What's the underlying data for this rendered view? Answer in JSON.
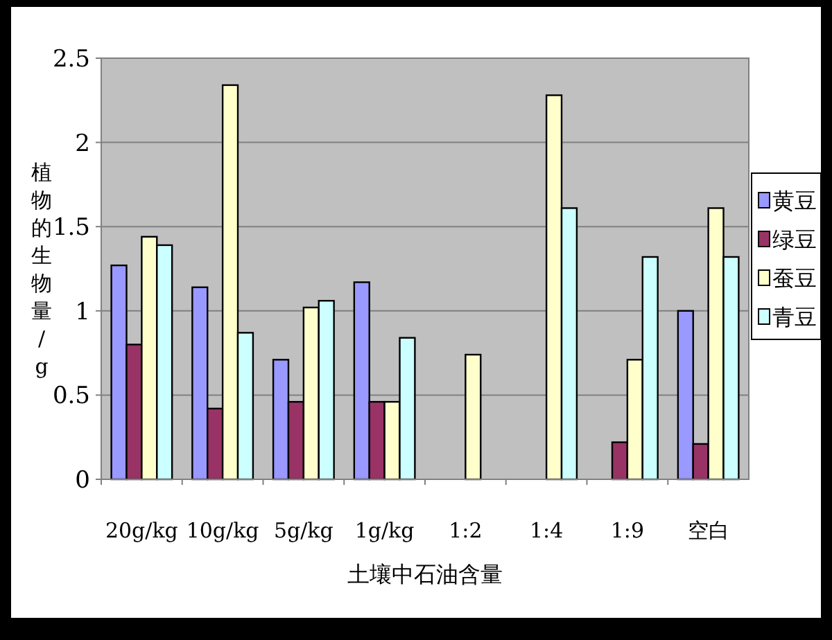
{
  "chart_data": {
    "type": "bar",
    "xlabel": "土壤中石油含量",
    "ylabel": "植物的生物量/g",
    "categories": [
      "20g/kg",
      "10g/kg",
      "5g/kg",
      "1g/kg",
      "1:2",
      "1:4",
      "1:9",
      "空白"
    ],
    "series": [
      {
        "name": "黄豆",
        "color": "#9999ff",
        "values": [
          1.27,
          1.14,
          0.71,
          1.17,
          null,
          null,
          null,
          1.0
        ]
      },
      {
        "name": "绿豆",
        "color": "#993366",
        "values": [
          0.8,
          0.42,
          0.46,
          0.46,
          null,
          null,
          0.22,
          0.21
        ]
      },
      {
        "name": "蚕豆",
        "color": "#ffffcc",
        "values": [
          1.44,
          2.34,
          1.02,
          0.46,
          0.74,
          2.28,
          0.71,
          1.61
        ]
      },
      {
        "name": "青豆",
        "color": "#ccffff",
        "values": [
          1.39,
          0.87,
          1.06,
          0.84,
          null,
          1.61,
          1.32,
          1.32
        ]
      }
    ],
    "ylim": [
      0,
      2.5
    ],
    "yticks": [
      0,
      {
        "value": 0.5,
        "label": "0.5"
      },
      1,
      {
        "value": 1.5,
        "label": "1.5"
      },
      2,
      {
        "value": 2.5,
        "label": "2.5"
      }
    ],
    "grid": "y",
    "legend": "right"
  }
}
